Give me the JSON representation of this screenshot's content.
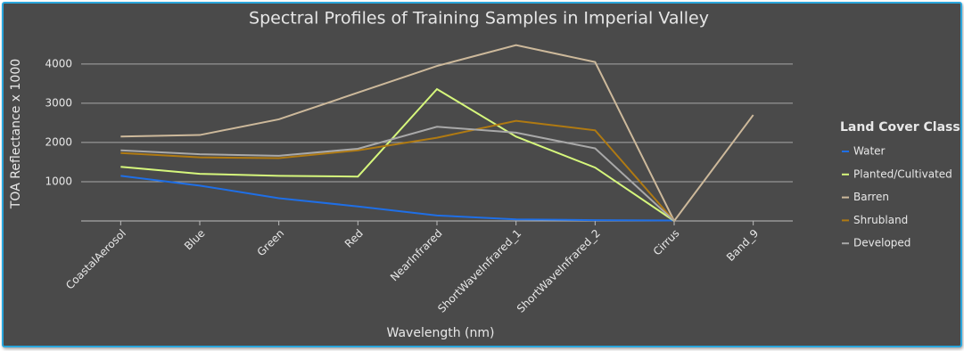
{
  "chart_data": {
    "type": "line",
    "title": "Spectral Profiles of Training Samples in Imperial Valley",
    "x_label": "Wavelength (nm)",
    "y_label": "TOA Reflectance x 1000",
    "legend_title": "Land Cover Class",
    "legend": "right",
    "grid": true,
    "categories": [
      "CoastalAerosol",
      "Blue",
      "Green",
      "Red",
      "NearInfrared",
      "ShortWaveInfrared_1",
      "ShortWaveInfrared_2",
      "Cirrus",
      "Band_9"
    ],
    "ylim": [
      0,
      4700
    ],
    "yticks": [
      1000,
      2000,
      3000,
      4000
    ],
    "series": [
      {
        "name": "Water",
        "color": "#1f6fe6",
        "values": [
          1150,
          900,
          580,
          370,
          140,
          40,
          20,
          10,
          null
        ]
      },
      {
        "name": "Planted/Cultivated",
        "color": "#d6f77c",
        "values": [
          1380,
          1200,
          1150,
          1130,
          3360,
          2150,
          1360,
          0,
          null
        ]
      },
      {
        "name": "Barren",
        "color": "#cdb99b",
        "values": [
          2150,
          2190,
          2590,
          3270,
          3950,
          4480,
          4050,
          0,
          2700
        ]
      },
      {
        "name": "Shrubland",
        "color": "#b07a12",
        "values": [
          1730,
          1620,
          1600,
          1800,
          2120,
          2550,
          2310,
          0,
          null
        ]
      },
      {
        "name": "Developed",
        "color": "#a9a9a9",
        "values": [
          1800,
          1700,
          1660,
          1840,
          2400,
          2250,
          1850,
          0,
          null
        ]
      }
    ]
  }
}
